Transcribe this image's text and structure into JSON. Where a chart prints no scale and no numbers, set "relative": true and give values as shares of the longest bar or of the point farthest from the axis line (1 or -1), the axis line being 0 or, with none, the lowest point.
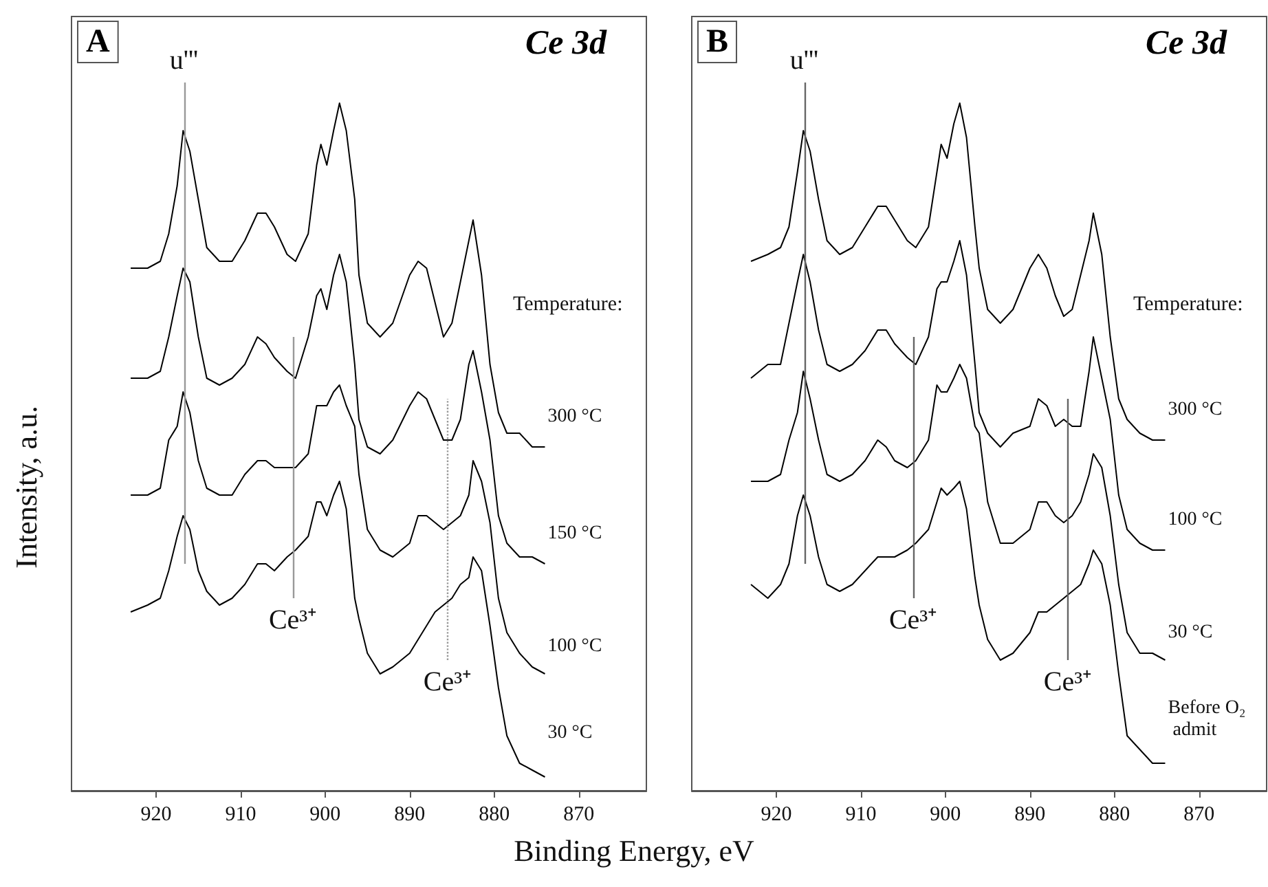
{
  "chart_data": [
    {
      "type": "line",
      "title": "Ce 3d",
      "xlabel": "Binding Energy, eV",
      "ylabel": "Intensity, a.u.",
      "legend_title": "Temperature:",
      "annotations": [
        "A"
      ],
      "relative": true,
      "x": [
        923,
        921,
        919.5,
        918.5,
        917.5,
        916.8,
        916,
        915,
        914,
        912.5,
        911,
        909.5,
        908,
        907,
        906,
        904.5,
        903.5,
        902,
        901,
        900.5,
        899.8,
        899,
        898.3,
        897.5,
        896.5,
        896,
        895,
        893.5,
        892,
        890,
        889,
        888,
        887,
        886,
        885,
        884,
        883,
        882.5,
        881.5,
        880.5,
        879.5,
        878.5,
        877,
        875.5,
        874
      ],
      "xlim": [
        930,
        862
      ],
      "xticks": [
        920,
        910,
        900,
        890,
        880,
        870
      ],
      "series": [
        {
          "name": "300 °C",
          "color": "#000000",
          "values": [
            0.76,
            0.76,
            0.77,
            0.81,
            0.88,
            0.96,
            0.93,
            0.86,
            0.79,
            0.77,
            0.77,
            0.8,
            0.84,
            0.84,
            0.82,
            0.78,
            0.77,
            0.81,
            0.91,
            0.94,
            0.91,
            0.96,
            1.0,
            0.96,
            0.86,
            0.75,
            0.68,
            0.66,
            0.68,
            0.75,
            0.77,
            0.76,
            0.71,
            0.66,
            0.68,
            0.74,
            0.8,
            0.83,
            0.75,
            0.62,
            0.55,
            0.52,
            0.52,
            0.5,
            0.5
          ]
        },
        {
          "name": "150 °C",
          "color": "#000000",
          "values": [
            0.6,
            0.6,
            0.61,
            0.66,
            0.72,
            0.76,
            0.74,
            0.66,
            0.6,
            0.59,
            0.6,
            0.62,
            0.66,
            0.65,
            0.63,
            0.61,
            0.6,
            0.66,
            0.72,
            0.73,
            0.7,
            0.75,
            0.78,
            0.74,
            0.62,
            0.54,
            0.5,
            0.49,
            0.51,
            0.56,
            0.58,
            0.57,
            0.54,
            0.51,
            0.51,
            0.54,
            0.62,
            0.64,
            0.58,
            0.51,
            0.4,
            0.36,
            0.34,
            0.34,
            0.33
          ]
        },
        {
          "name": "100 °C",
          "color": "#000000",
          "values": [
            0.43,
            0.43,
            0.44,
            0.51,
            0.53,
            0.58,
            0.55,
            0.48,
            0.44,
            0.43,
            0.43,
            0.46,
            0.48,
            0.48,
            0.47,
            0.47,
            0.47,
            0.49,
            0.56,
            0.56,
            0.56,
            0.58,
            0.59,
            0.56,
            0.53,
            0.46,
            0.38,
            0.35,
            0.34,
            0.36,
            0.4,
            0.4,
            0.39,
            0.38,
            0.39,
            0.4,
            0.43,
            0.48,
            0.45,
            0.39,
            0.28,
            0.23,
            0.2,
            0.18,
            0.17
          ]
        },
        {
          "name": "30 °C",
          "color": "#000000",
          "values": [
            0.26,
            0.27,
            0.28,
            0.32,
            0.37,
            0.4,
            0.38,
            0.32,
            0.29,
            0.27,
            0.28,
            0.3,
            0.33,
            0.33,
            0.32,
            0.34,
            0.35,
            0.37,
            0.42,
            0.42,
            0.4,
            0.43,
            0.45,
            0.41,
            0.28,
            0.25,
            0.2,
            0.17,
            0.18,
            0.2,
            0.22,
            0.24,
            0.26,
            0.27,
            0.28,
            0.3,
            0.31,
            0.34,
            0.32,
            0.24,
            0.15,
            0.08,
            0.04,
            0.03,
            0.02
          ]
        }
      ],
      "ref_lines": [
        {
          "axis": "x",
          "value": 916.7,
          "label": "u'''",
          "color": "#999999"
        },
        {
          "axis": "x",
          "value": 903.8,
          "label": "Ce³⁺",
          "color": "#999999"
        },
        {
          "axis": "x",
          "value": 885.5,
          "label": "Ce³⁺",
          "color": "#999999",
          "line_style": "dotted"
        }
      ]
    },
    {
      "type": "line",
      "title": "Ce 3d",
      "legend_title": "Temperature:",
      "annotations": [
        "B"
      ],
      "relative": true,
      "x": [
        923,
        921,
        919.5,
        918.5,
        917.5,
        916.8,
        916,
        915,
        914,
        912.5,
        911,
        909.5,
        908,
        907,
        906,
        904.5,
        903.5,
        902,
        901,
        900.5,
        899.8,
        899,
        898.3,
        897.5,
        896.5,
        896,
        895,
        893.5,
        892,
        890,
        889,
        888,
        887,
        886,
        885,
        884,
        883,
        882.5,
        881.5,
        880.5,
        879.5,
        878.5,
        877,
        875.5,
        874
      ],
      "xlim": [
        930,
        862
      ],
      "xticks": [
        920,
        910,
        900,
        890,
        880,
        870
      ],
      "series": [
        {
          "name": "300 °C",
          "color": "#000000",
          "values": [
            0.77,
            0.78,
            0.79,
            0.82,
            0.9,
            0.96,
            0.93,
            0.86,
            0.8,
            0.78,
            0.79,
            0.82,
            0.85,
            0.85,
            0.83,
            0.8,
            0.79,
            0.82,
            0.9,
            0.94,
            0.92,
            0.97,
            1.0,
            0.95,
            0.82,
            0.76,
            0.7,
            0.68,
            0.7,
            0.76,
            0.78,
            0.76,
            0.72,
            0.69,
            0.7,
            0.75,
            0.8,
            0.84,
            0.78,
            0.66,
            0.57,
            0.54,
            0.52,
            0.51,
            0.51
          ]
        },
        {
          "name": "100 °C",
          "color": "#000000",
          "values": [
            0.6,
            0.62,
            0.62,
            0.68,
            0.74,
            0.78,
            0.74,
            0.67,
            0.62,
            0.61,
            0.62,
            0.64,
            0.67,
            0.67,
            0.65,
            0.63,
            0.62,
            0.66,
            0.73,
            0.74,
            0.74,
            0.77,
            0.8,
            0.75,
            0.62,
            0.55,
            0.52,
            0.5,
            0.52,
            0.53,
            0.57,
            0.56,
            0.53,
            0.54,
            0.53,
            0.53,
            0.61,
            0.66,
            0.6,
            0.54,
            0.43,
            0.38,
            0.36,
            0.35,
            0.35
          ]
        },
        {
          "name": "30 °C",
          "color": "#000000",
          "values": [
            0.45,
            0.45,
            0.46,
            0.51,
            0.55,
            0.61,
            0.57,
            0.51,
            0.46,
            0.45,
            0.46,
            0.48,
            0.51,
            0.5,
            0.48,
            0.47,
            0.48,
            0.51,
            0.59,
            0.58,
            0.58,
            0.6,
            0.62,
            0.6,
            0.53,
            0.52,
            0.42,
            0.36,
            0.36,
            0.38,
            0.42,
            0.42,
            0.4,
            0.39,
            0.4,
            0.42,
            0.46,
            0.49,
            0.47,
            0.4,
            0.3,
            0.23,
            0.2,
            0.2,
            0.19
          ]
        },
        {
          "name": "Before O₂ admit",
          "color": "#000000",
          "values": [
            0.3,
            0.28,
            0.3,
            0.33,
            0.4,
            0.43,
            0.4,
            0.34,
            0.3,
            0.29,
            0.3,
            0.32,
            0.34,
            0.34,
            0.34,
            0.35,
            0.36,
            0.38,
            0.42,
            0.44,
            0.43,
            0.44,
            0.45,
            0.41,
            0.31,
            0.27,
            0.22,
            0.19,
            0.2,
            0.23,
            0.26,
            0.26,
            0.27,
            0.28,
            0.29,
            0.3,
            0.33,
            0.35,
            0.33,
            0.27,
            0.17,
            0.08,
            0.06,
            0.04,
            0.04
          ]
        }
      ],
      "ref_lines": [
        {
          "axis": "x",
          "value": 916.7,
          "label": "u'''",
          "color": "#666666"
        },
        {
          "axis": "x",
          "value": 903.8,
          "label": "Ce³⁺",
          "color": "#666666"
        },
        {
          "axis": "x",
          "value": 885.5,
          "label": "Ce³⁺",
          "color": "#666666"
        }
      ]
    }
  ]
}
